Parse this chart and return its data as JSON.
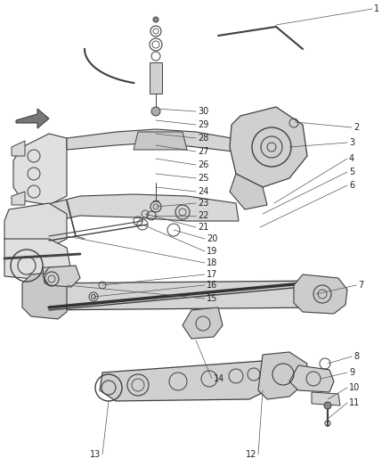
{
  "background_color": "#ffffff",
  "fig_width": 4.38,
  "fig_height": 5.33,
  "dpi": 100,
  "line_color": "#404040",
  "label_color": "#222222",
  "label_fontsize": 7.0,
  "labels_right": [
    "1",
    "2",
    "3",
    "4",
    "5",
    "6",
    "7",
    "8",
    "9",
    "10",
    "11"
  ],
  "labels_left_bottom": [
    "12",
    "13"
  ],
  "labels_left_stack": [
    "14",
    "15",
    "16",
    "17",
    "18",
    "19",
    "20",
    "21",
    "22",
    "23",
    "24",
    "25",
    "26",
    "27",
    "28",
    "29",
    "30"
  ]
}
